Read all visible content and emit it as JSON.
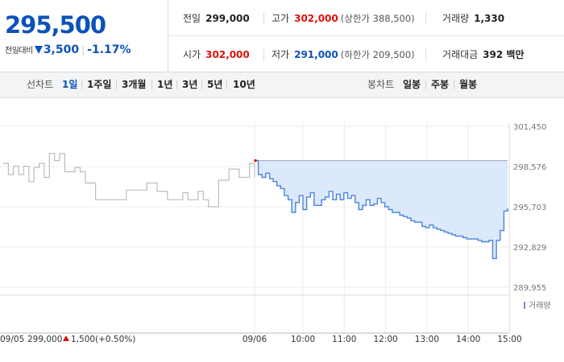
{
  "quote": {
    "price": "295,500",
    "change_label": "전일대비",
    "change_value": "3,500",
    "change_pct": "-1.17%",
    "direction": "down",
    "down_color": "#0b53b8",
    "up_color": "#e0120b"
  },
  "stats": {
    "prev_close_label": "전일",
    "prev_close": "299,000",
    "high_label": "고가",
    "high": "302,000",
    "upper_limit": "(상한가 388,500)",
    "volume_label": "거래량",
    "volume": "1,330",
    "open_label": "시가",
    "open": "302,000",
    "low_label": "저가",
    "low": "291,000",
    "lower_limit": "(하한가 209,500)",
    "turnover_label": "거래대금",
    "turnover": "392 백만"
  },
  "tabs": {
    "line_label": "선차트",
    "line": [
      "1일",
      "1주일",
      "3개월",
      "1년",
      "3년",
      "5년",
      "10년"
    ],
    "line_active": 0,
    "candle_label": "봉차트",
    "candle": [
      "일봉",
      "주봉",
      "월봉"
    ]
  },
  "chart_data": {
    "type": "line",
    "y_ticks": [
      "301,450",
      "298,576",
      "295,703",
      "292,829",
      "289,955"
    ],
    "ylim": [
      289955,
      301450
    ],
    "x_ticks": [
      "09/06",
      "10:00",
      "11:00",
      "12:00",
      "13:00",
      "14:00",
      "15:00"
    ],
    "prev_day_label": "09/05",
    "prev_day_close": "299,000",
    "prev_day_change": "1,500",
    "prev_day_change_pct": "(+0.50%)",
    "volume_legend": "거래량",
    "grid": true,
    "reference_line": 299000,
    "series": [
      {
        "session": "09/05",
        "values": [
          298800,
          298000,
          298600,
          298000,
          298600,
          297500,
          298500,
          298800,
          297800,
          299500,
          299000,
          299500,
          298200,
          298200,
          298500,
          298200,
          297400,
          297400,
          296200,
          296200,
          296200,
          296200,
          296200,
          296200,
          296900,
          296900,
          296900,
          296900,
          297400,
          297400,
          296800,
          296800,
          296200,
          296200,
          296200,
          296700,
          296200,
          296200,
          296800,
          296200,
          295700,
          295700,
          297600,
          297600,
          298400,
          298400,
          297800,
          297800,
          298800,
          297800
        ]
      },
      {
        "session": "09/06",
        "values": [
          299000,
          298000,
          297800,
          298100,
          297700,
          297500,
          297200,
          297000,
          296500,
          296200,
          295300,
          296000,
          296500,
          295500,
          296400,
          296700,
          295800,
          295800,
          296200,
          296400,
          296800,
          296200,
          296600,
          296200,
          296700,
          296300,
          296500,
          296000,
          295500,
          295800,
          296200,
          295800,
          295900,
          296300,
          296000,
          295700,
          295500,
          295300,
          295300,
          295100,
          295000,
          294900,
          294700,
          294600,
          294600,
          294300,
          294200,
          294400,
          294200,
          294100,
          294000,
          293900,
          293800,
          293700,
          293600,
          293600,
          293500,
          293400,
          293400,
          293400,
          293300,
          293200,
          293200,
          293300,
          292000,
          293300,
          294000,
          295400,
          295600
        ]
      }
    ]
  }
}
